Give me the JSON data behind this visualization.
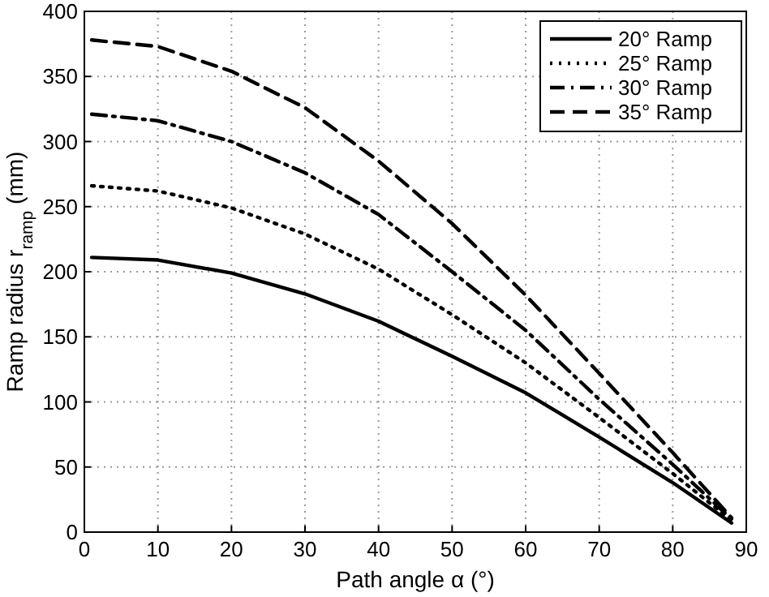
{
  "chart_data": {
    "type": "line",
    "xlabel": "Path angle α (°)",
    "ylabel": "Ramp radius r$_{ramp}$ (mm)",
    "x": [
      1,
      10,
      20,
      30,
      40,
      50,
      60,
      70,
      80,
      88
    ],
    "xlim": [
      0,
      90
    ],
    "ylim": [
      0,
      400
    ],
    "xticks": [
      0,
      10,
      20,
      30,
      40,
      50,
      60,
      70,
      80,
      90
    ],
    "yticks": [
      0,
      50,
      100,
      150,
      200,
      250,
      300,
      350,
      400
    ],
    "grid": true,
    "legend": "top right",
    "series": [
      {
        "name": "20° Ramp",
        "color": "#000000",
        "line_style": "solid",
        "values": [
          211,
          209,
          199,
          183,
          162,
          135,
          107,
          73,
          38,
          7
        ]
      },
      {
        "name": "25° Ramp",
        "color": "#000000",
        "line_style": "dotted",
        "values": [
          266,
          262,
          249,
          229,
          202,
          167,
          130,
          88,
          45,
          9
        ]
      },
      {
        "name": "30° Ramp",
        "color": "#000000",
        "line_style": "dashdot",
        "values": [
          321,
          316,
          300,
          276,
          244,
          200,
          155,
          102,
          52,
          10
        ]
      },
      {
        "name": "35° Ramp",
        "color": "#000000",
        "line_style": "dashed",
        "values": [
          378,
          373,
          354,
          326,
          285,
          237,
          182,
          122,
          61,
          11
        ]
      }
    ]
  }
}
